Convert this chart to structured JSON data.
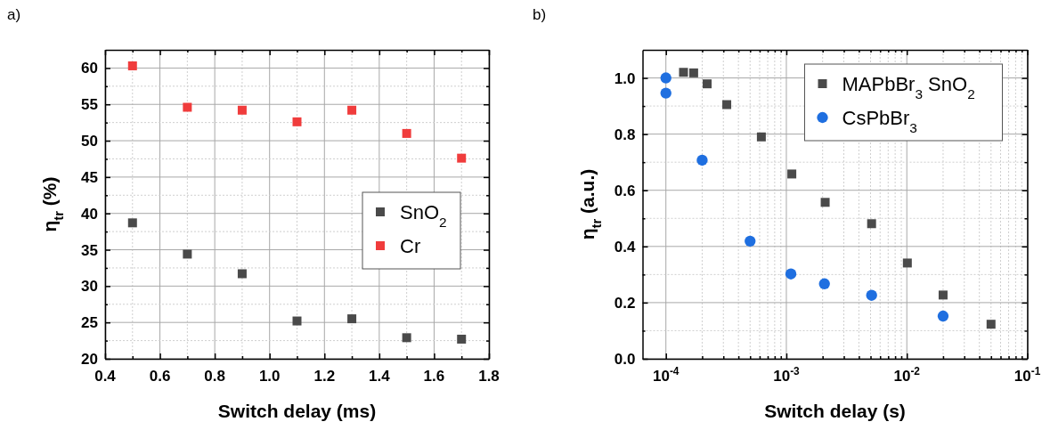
{
  "chart_data": [
    {
      "type": "scatter",
      "title": "a)",
      "xlabel": "Switch delay (ms)",
      "ylabel": "η$_{tr}$ (%)",
      "marker": "square",
      "grid": true,
      "legend": "right",
      "xlim": [
        0.4,
        1.8
      ],
      "xticks": [
        {
          "value": 0.4,
          "label": "0.4"
        },
        {
          "value": 0.5,
          "label": null
        },
        {
          "value": 0.6,
          "label": "0.6"
        },
        {
          "value": 0.7,
          "label": null
        },
        {
          "value": 0.8,
          "label": "0.8"
        },
        {
          "value": 0.9,
          "label": null
        },
        {
          "value": 1.0,
          "label": "1.0"
        },
        {
          "value": 1.1,
          "label": null
        },
        {
          "value": 1.2,
          "label": "1.2"
        },
        {
          "value": 1.3,
          "label": null
        },
        {
          "value": 1.4,
          "label": "1.4"
        },
        {
          "value": 1.5,
          "label": null
        },
        {
          "value": 1.6,
          "label": "1.6"
        },
        {
          "value": 1.7,
          "label": null
        },
        {
          "value": 1.8,
          "label": "1.8"
        }
      ],
      "ylim": [
        20,
        62.5
      ],
      "yticks": [
        20,
        {
          "value": 22.5,
          "label": null
        },
        25,
        {
          "value": 27.5,
          "label": null
        },
        30,
        {
          "value": 32.5,
          "label": null
        },
        35,
        {
          "value": 37.5,
          "label": null
        },
        40,
        {
          "value": 42.5,
          "label": null
        },
        45,
        {
          "value": 47.5,
          "label": null
        },
        50,
        {
          "value": 52.5,
          "label": null
        },
        55,
        {
          "value": 57.5,
          "label": null
        },
        60
      ],
      "x": [
        0.5,
        0.7,
        0.9,
        1.1,
        1.3,
        1.5,
        1.7
      ],
      "series": [
        {
          "name": "SnO$_{2}$",
          "color": "#4a4a4a",
          "values": [
            38.7,
            34.4,
            31.7,
            25.2,
            25.5,
            22.9,
            22.7
          ]
        },
        {
          "name": "Cr",
          "color": "#f03c3c",
          "values": [
            60.3,
            54.6,
            54.2,
            52.6,
            54.2,
            51.0,
            47.6
          ]
        }
      ]
    },
    {
      "type": "scatter",
      "title": "b)",
      "xlabel": "Switch delay (s)",
      "ylabel": "η$_{tr}$ (a.u.)",
      "log": "x",
      "grid": true,
      "legend": "top right",
      "xlim": [
        6.4e-05,
        0.1
      ],
      "xticks": [
        {
          "value": 0.0001,
          "label": "10$^{-4}$"
        },
        {
          "value": 0.0002,
          "label": null
        },
        {
          "value": 0.0003,
          "label": null
        },
        {
          "value": 0.0004,
          "label": null
        },
        {
          "value": 0.0005,
          "label": null
        },
        {
          "value": 0.0006,
          "label": null
        },
        {
          "value": 0.0007,
          "label": null
        },
        {
          "value": 0.0008,
          "label": null
        },
        {
          "value": 0.0009,
          "label": null
        },
        {
          "value": 0.001,
          "label": "10$^{-3}$"
        },
        {
          "value": 0.002,
          "label": null
        },
        {
          "value": 0.003,
          "label": null
        },
        {
          "value": 0.004,
          "label": null
        },
        {
          "value": 0.005,
          "label": null
        },
        {
          "value": 0.006,
          "label": null
        },
        {
          "value": 0.007,
          "label": null
        },
        {
          "value": 0.008,
          "label": null
        },
        {
          "value": 0.009,
          "label": null
        },
        {
          "value": 0.01,
          "label": "10$^{-2}$"
        },
        {
          "value": 0.02,
          "label": null
        },
        {
          "value": 0.03,
          "label": null
        },
        {
          "value": 0.04,
          "label": null
        },
        {
          "value": 0.05,
          "label": null
        },
        {
          "value": 0.06,
          "label": null
        },
        {
          "value": 0.07,
          "label": null
        },
        {
          "value": 0.08,
          "label": null
        },
        {
          "value": 0.09,
          "label": null
        },
        {
          "value": 0.1,
          "label": "10$^{-1}$"
        }
      ],
      "ylim": [
        0,
        1.1
      ],
      "yticks": [
        {
          "value": 0,
          "label": "0.0"
        },
        {
          "value": 0.1,
          "label": null
        },
        {
          "value": 0.2,
          "label": "0.2"
        },
        {
          "value": 0.3,
          "label": null
        },
        {
          "value": 0.4,
          "label": "0.4"
        },
        {
          "value": 0.5,
          "label": null
        },
        {
          "value": 0.6,
          "label": "0.6"
        },
        {
          "value": 0.7,
          "label": null
        },
        {
          "value": 0.8,
          "label": "0.8"
        },
        {
          "value": 0.9,
          "label": null
        },
        {
          "value": 1.0,
          "label": "1.0"
        }
      ],
      "series": [
        {
          "name": "MAPbBr$_{3}$ SnO$_{2}$",
          "color": "#4a4a4a",
          "marker": "square",
          "x": [
            0.00014,
            0.00017,
            0.00022,
            0.00032,
            0.00062,
            0.00111,
            0.0021,
            0.0051,
            0.0101,
            0.02,
            0.05
          ],
          "values": [
            1.02,
            1.018,
            0.979,
            0.905,
            0.79,
            0.658,
            0.557,
            0.481,
            0.341,
            0.227,
            0.123
          ]
        },
        {
          "name": "CsPbBr$_{3}$",
          "color": "#1f6fe0",
          "marker": "circle",
          "x": [
            0.0001,
            0.0001,
            0.0002,
            0.0005,
            0.00109,
            0.00207,
            0.0051,
            0.02
          ],
          "values": [
            1.0,
            0.946,
            0.707,
            0.419,
            0.302,
            0.267,
            0.226,
            0.152
          ]
        }
      ]
    }
  ]
}
